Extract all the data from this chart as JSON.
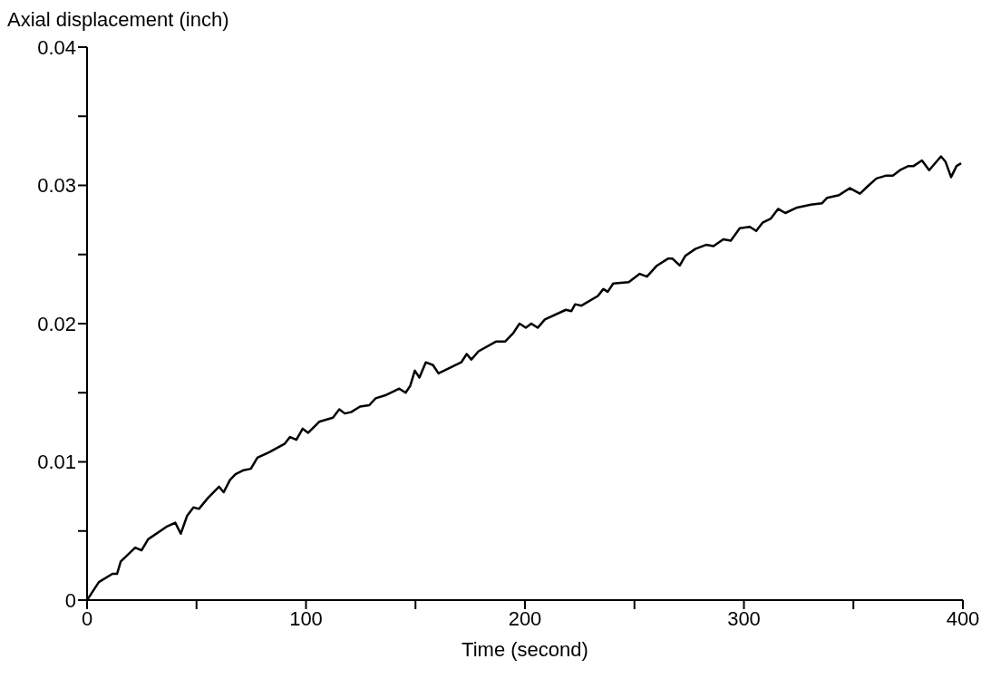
{
  "chart_data": {
    "type": "line",
    "xlabel": "Time (second)",
    "ylabel": "Axial displacement (inch)",
    "xlim": [
      0,
      400
    ],
    "ylim": [
      0,
      0.04
    ],
    "xticks": [
      0,
      {
        "value": 50,
        "label": null
      },
      100,
      {
        "value": 150,
        "label": null
      },
      200,
      {
        "value": 250,
        "label": null
      },
      300,
      {
        "value": 350,
        "label": null
      },
      400
    ],
    "yticks": [
      0,
      {
        "value": 0.005,
        "label": null
      },
      0.01,
      {
        "value": 0.015,
        "label": null
      },
      0.02,
      {
        "value": 0.025,
        "label": null
      },
      0.03,
      {
        "value": 0.035,
        "label": null
      },
      0.04
    ],
    "grid": false,
    "legend": false,
    "marker": "none",
    "line_style": "solid",
    "series": [
      {
        "color": "#000000",
        "x": [
          0,
          5.4,
          11.6,
          13.7,
          15.4,
          22.0,
          24.9,
          27.9,
          36.2,
          40.3,
          42.8,
          45.7,
          48.6,
          51.1,
          55.3,
          60.3,
          62.4,
          65.3,
          67.8,
          71.5,
          74.8,
          77.8,
          83.2,
          90.2,
          92.7,
          95.6,
          98.5,
          101.0,
          106.0,
          112.3,
          115.2,
          117.7,
          120.6,
          124.7,
          128.9,
          131.8,
          136.0,
          140.1,
          142.6,
          145.5,
          147.6,
          149.7,
          151.8,
          154.7,
          158.0,
          160.5,
          170.9,
          173.4,
          175.5,
          178.8,
          186.7,
          190.9,
          194.6,
          197.5,
          200.4,
          202.9,
          205.8,
          209.1,
          218.7,
          221.2,
          222.9,
          225.8,
          233.3,
          235.8,
          237.8,
          240.3,
          247.4,
          252.4,
          255.7,
          260.3,
          265.3,
          267.4,
          270.7,
          273.2,
          277.8,
          282.7,
          286.1,
          290.6,
          294.0,
          298.1,
          302.7,
          305.6,
          308.5,
          312.3,
          315.6,
          318.9,
          324.3,
          330.6,
          335.6,
          338.0,
          343.5,
          348.4,
          353.0,
          356.3,
          360.5,
          364.7,
          368.0,
          371.3,
          375.1,
          377.5,
          381.3,
          384.6,
          390.0,
          392.1,
          394.6,
          397.1,
          399.2
        ],
        "values": [
          0,
          0.0013,
          0.0019,
          0.0019,
          0.0028,
          0.0038,
          0.0036,
          0.0044,
          0.0053,
          0.0056,
          0.0048,
          0.0061,
          0.0067,
          0.0066,
          0.0074,
          0.0082,
          0.0078,
          0.0087,
          0.0091,
          0.0094,
          0.0095,
          0.0103,
          0.0107,
          0.0113,
          0.0118,
          0.0116,
          0.0124,
          0.0121,
          0.0129,
          0.0132,
          0.0138,
          0.0135,
          0.0136,
          0.014,
          0.0141,
          0.0146,
          0.0148,
          0.0151,
          0.0153,
          0.015,
          0.0155,
          0.0166,
          0.0161,
          0.0172,
          0.017,
          0.0164,
          0.0172,
          0.0178,
          0.0174,
          0.018,
          0.0187,
          0.0187,
          0.0193,
          0.02,
          0.0197,
          0.02,
          0.0197,
          0.0203,
          0.021,
          0.0209,
          0.0214,
          0.0213,
          0.022,
          0.0225,
          0.0223,
          0.0229,
          0.023,
          0.0236,
          0.0234,
          0.0242,
          0.0247,
          0.0247,
          0.0242,
          0.0249,
          0.0254,
          0.0257,
          0.0256,
          0.0261,
          0.026,
          0.0269,
          0.027,
          0.0267,
          0.0273,
          0.0276,
          0.0283,
          0.028,
          0.0284,
          0.0286,
          0.0287,
          0.0291,
          0.0293,
          0.0298,
          0.0294,
          0.0299,
          0.0305,
          0.0307,
          0.0307,
          0.0311,
          0.0314,
          0.0314,
          0.0318,
          0.0311,
          0.0321,
          0.0317,
          0.0306,
          0.0314,
          0.0316
        ]
      }
    ]
  }
}
